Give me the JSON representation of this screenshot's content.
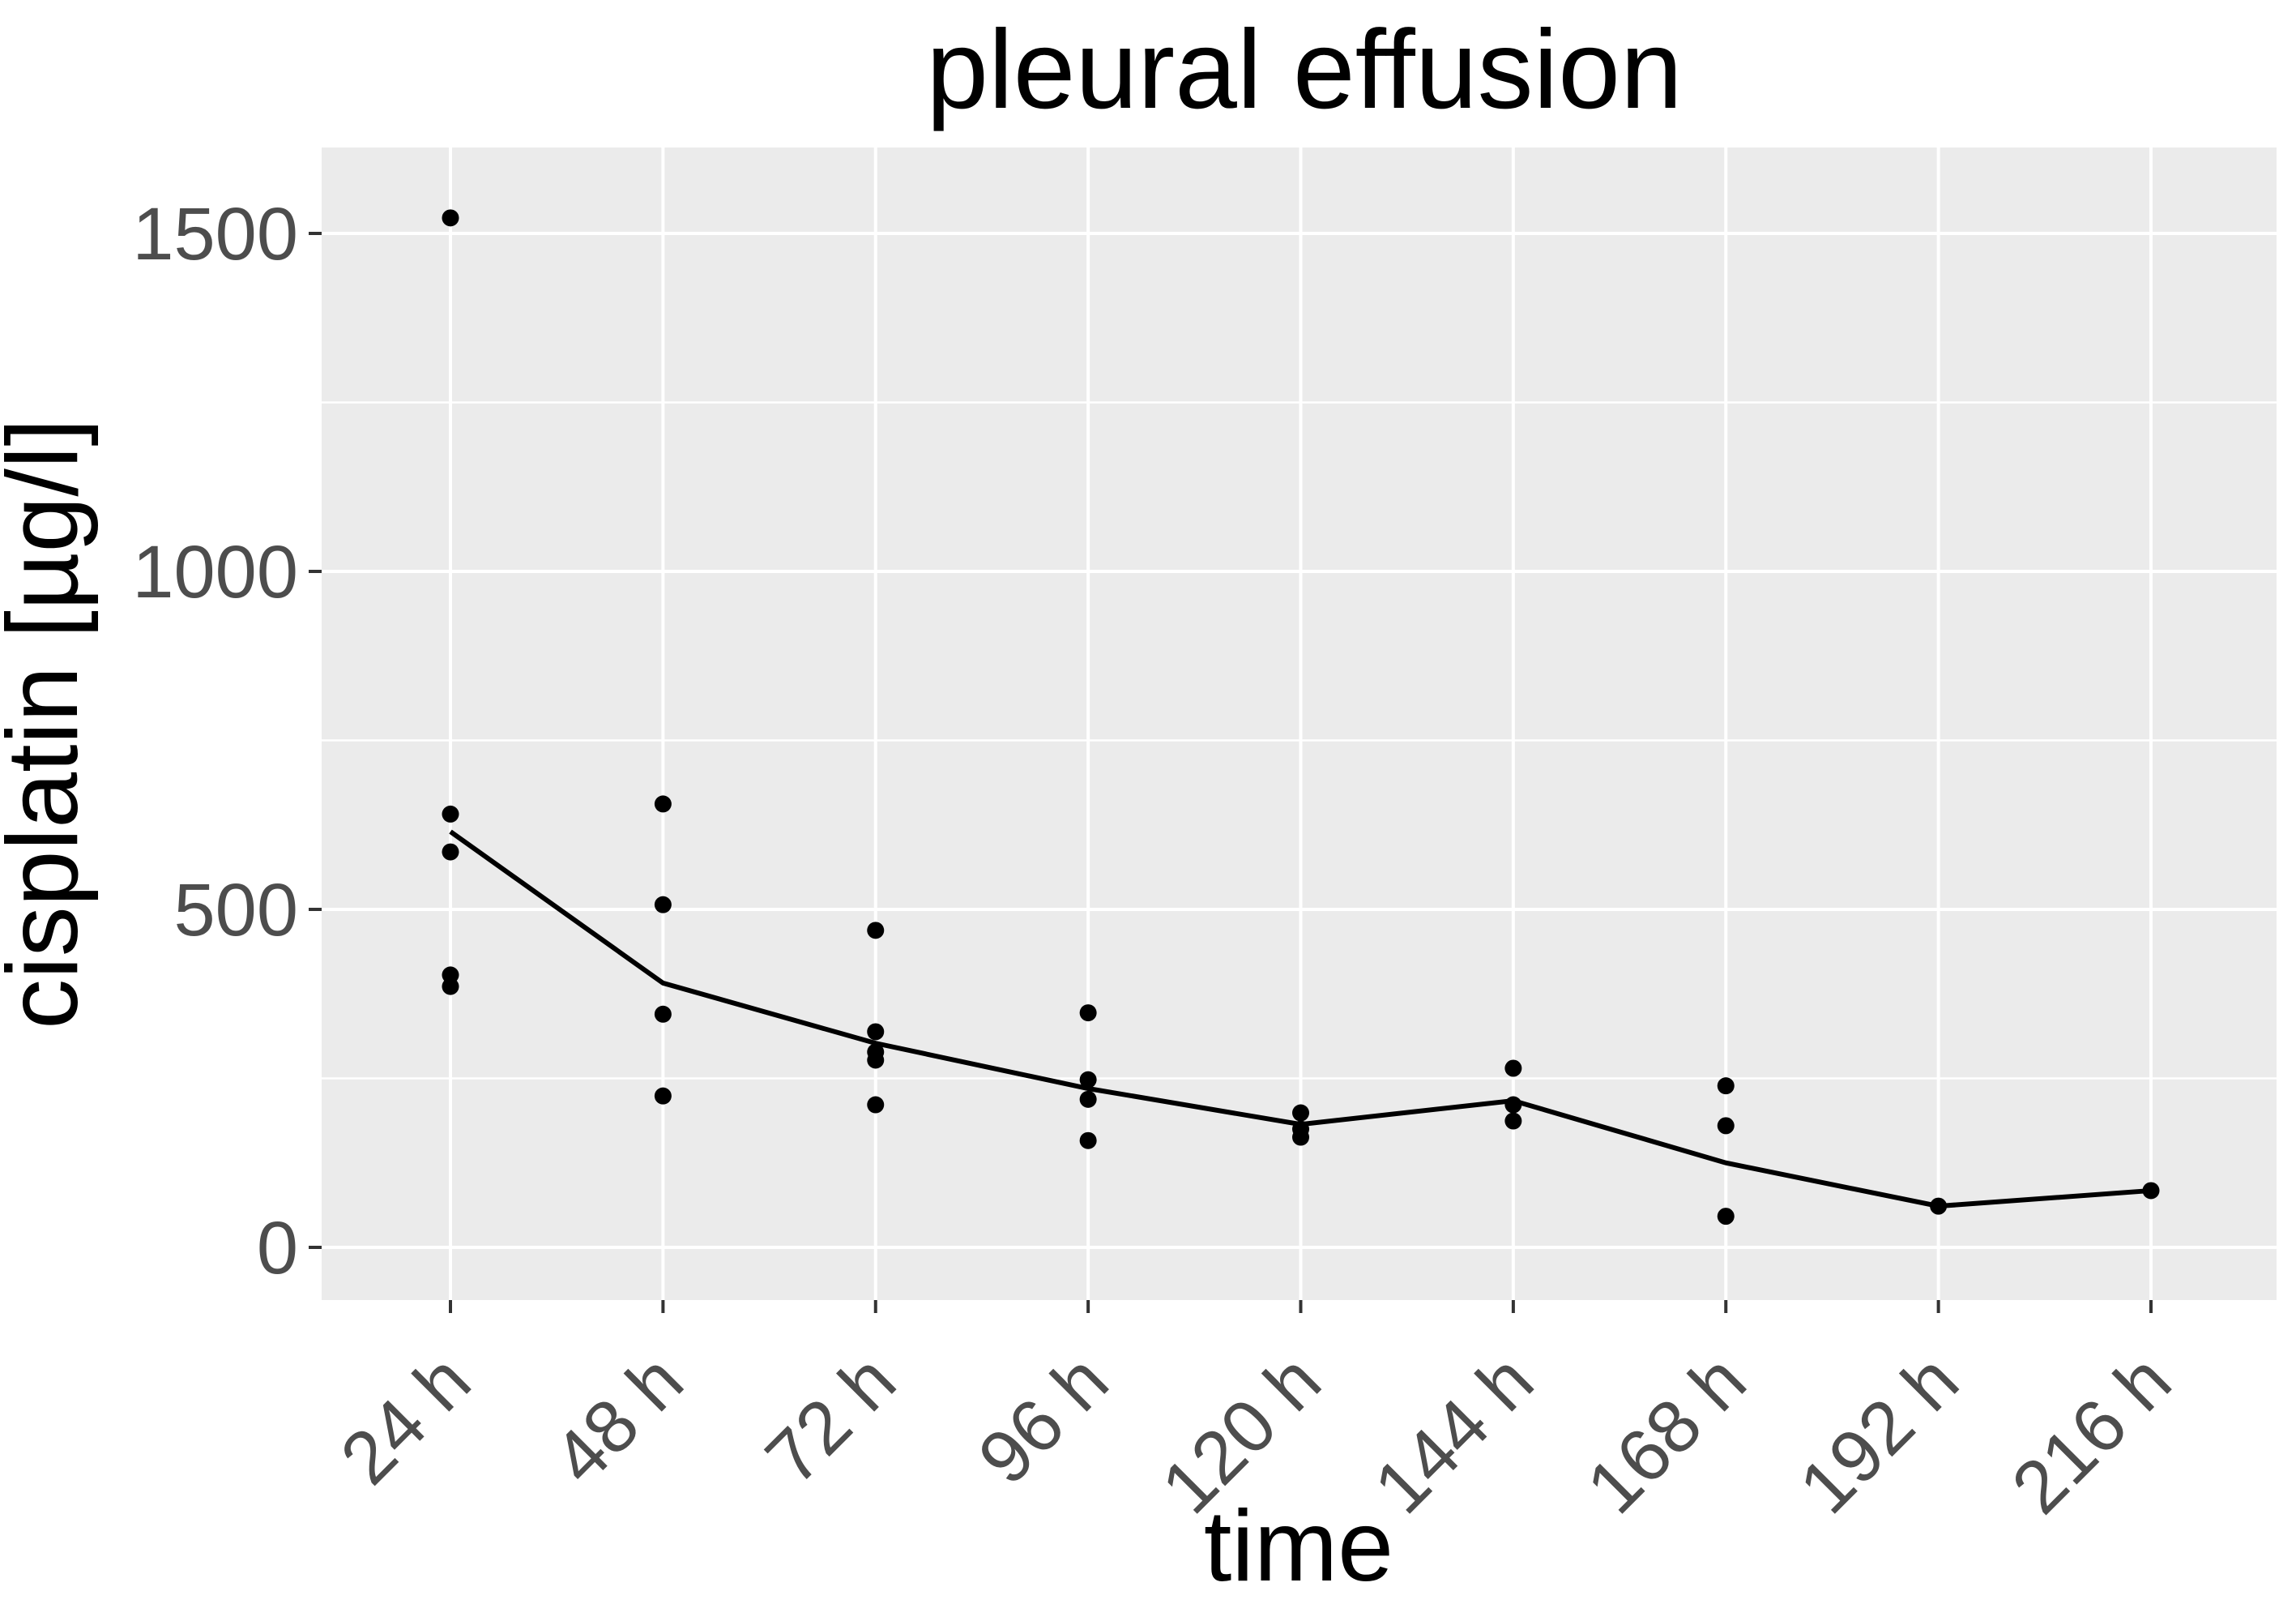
{
  "chart_data": {
    "type": "scatter",
    "title": "pleural effusion",
    "xlabel": "time",
    "ylabel": "cisplatin [µg/l]",
    "categories": [
      "24 h",
      "48 h",
      "72 h",
      "96 h",
      "120 h",
      "144 h",
      "168 h",
      "192 h",
      "216 h"
    ],
    "y_tick_labels": [
      "0",
      "500",
      "1000",
      "1500"
    ],
    "y_tick_values": [
      0,
      500,
      1000,
      1500
    ],
    "y_minor_gridlines": [
      250,
      750,
      1250
    ],
    "ylim": [
      -80,
      1628
    ],
    "grid": true,
    "legend_position": "none",
    "series": [
      {
        "name": "individual measurements",
        "type": "points",
        "values_by_category": [
          [
            1523,
            641,
            585,
            403,
            386
          ],
          [
            656,
            507,
            345,
            224
          ],
          [
            469,
            319,
            289,
            277,
            211
          ],
          [
            347,
            248,
            219,
            158
          ],
          [
            199,
            175,
            163
          ],
          [
            265,
            211,
            187
          ],
          [
            239,
            180,
            46
          ],
          [
            61
          ],
          [
            84
          ]
        ]
      },
      {
        "name": "mean line",
        "type": "line",
        "values": [
          615,
          391,
          302,
          235,
          182,
          217,
          125,
          61,
          84
        ]
      }
    ],
    "colors": {
      "panel_background": "#ebebeb",
      "gridline": "#ffffff",
      "point": "#000000",
      "line": "#000000",
      "tick_mark": "#333333",
      "axis_text": "#4d4d4d",
      "title_text": "#000000"
    }
  }
}
